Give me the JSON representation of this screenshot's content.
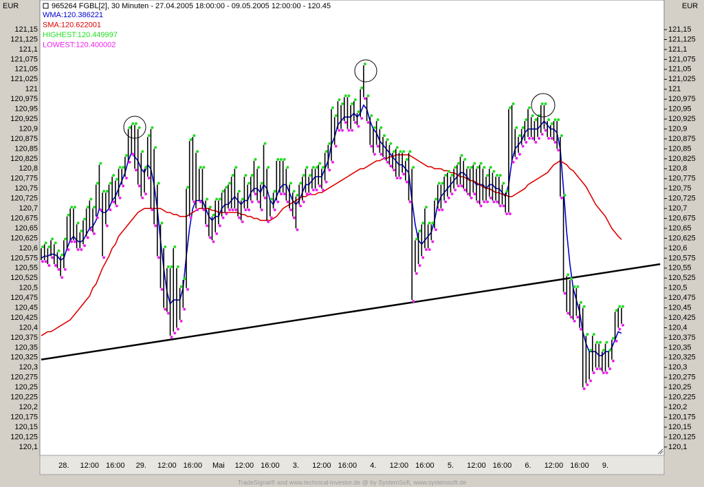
{
  "header": {
    "currency": "EUR",
    "title": "965264  FGBL[2], 30 Minuten - 27.04.2005 18:00:00 - 09.05.2005 12:00:00 - 120.45"
  },
  "footer": "TradeSignal® and www.technical-investor.de @ by SystemSoft, www.systemsoft.de",
  "chart_data": {
    "type": "ohlc",
    "categories": [
      null,
      null,
      null,
      null,
      "28.",
      null,
      null,
      null,
      null,
      null,
      null,
      null,
      "12:00",
      null,
      null,
      null,
      null,
      null,
      null,
      null,
      "16:00",
      null,
      null,
      null,
      null,
      null,
      null,
      null,
      "29.",
      null,
      null,
      null,
      null,
      null,
      null,
      null,
      "12:00",
      null,
      null,
      null,
      null,
      null,
      null,
      null,
      "16:00",
      null,
      null,
      null,
      null,
      null,
      null,
      null,
      "Mai",
      null,
      null,
      null,
      null,
      null,
      null,
      null,
      "12:00",
      null,
      null,
      null,
      null,
      null,
      null,
      null,
      "16:00",
      null,
      null,
      null,
      null,
      null,
      null,
      null,
      "3.",
      null,
      null,
      null,
      null,
      null,
      null,
      null,
      "12:00",
      null,
      null,
      null,
      null,
      null,
      null,
      null,
      "16:00",
      null,
      null,
      null,
      null,
      null,
      null,
      null,
      "4.",
      null,
      null,
      null,
      null,
      null,
      null,
      null,
      "12:00",
      null,
      null,
      null,
      null,
      null,
      null,
      null,
      "16:00",
      null,
      null,
      null,
      null,
      null,
      null,
      null,
      "5.",
      null,
      null,
      null,
      null,
      null,
      null,
      null,
      "12:00",
      null,
      null,
      null,
      null,
      null,
      null,
      null,
      "16:00",
      null,
      null,
      null,
      null,
      null,
      null,
      null,
      "6.",
      null,
      null,
      null,
      null,
      null,
      null,
      null,
      "12:00",
      null,
      null,
      null,
      null,
      null,
      null,
      null,
      "16:00",
      null,
      null,
      null,
      null,
      null,
      null,
      null,
      "9.",
      null,
      null,
      null,
      null,
      null,
      null,
      null,
      null
    ],
    "high": [
      120.6,
      120.61,
      120.6,
      120.62,
      120.61,
      120.59,
      120.58,
      120.62,
      120.68,
      120.7,
      120.7,
      120.66,
      120.64,
      120.67,
      120.7,
      120.72,
      120.7,
      120.76,
      120.81,
      120.74,
      120.74,
      120.76,
      120.78,
      120.77,
      120.8,
      120.8,
      120.83,
      120.9,
      120.91,
      120.91,
      120.9,
      120.84,
      120.8,
      120.88,
      120.9,
      120.85,
      120.76,
      120.66,
      120.6,
      120.55,
      120.55,
      120.6,
      120.55,
      120.5,
      120.52,
      120.75,
      120.87,
      120.88,
      120.84,
      120.8,
      120.8,
      120.72,
      120.7,
      120.68,
      120.72,
      120.72,
      120.74,
      120.75,
      120.76,
      120.78,
      120.8,
      120.74,
      120.72,
      120.78,
      120.76,
      120.78,
      120.82,
      120.8,
      120.76,
      120.86,
      120.8,
      120.72,
      120.74,
      120.82,
      120.82,
      120.82,
      120.8,
      120.76,
      120.74,
      120.73,
      120.76,
      120.78,
      120.8,
      120.78,
      120.8,
      120.8,
      120.81,
      120.8,
      120.84,
      120.86,
      120.95,
      120.93,
      120.97,
      120.96,
      120.98,
      120.98,
      120.96,
      120.97,
      120.94,
      121.0,
      121.06,
      120.98,
      120.93,
      120.9,
      120.92,
      120.9,
      120.88,
      120.87,
      120.86,
      120.84,
      120.85,
      120.84,
      120.84,
      120.82,
      120.84,
      120.8,
      120.62,
      120.64,
      120.66,
      120.7,
      120.66,
      120.66,
      120.72,
      120.76,
      120.76,
      120.78,
      120.79,
      120.78,
      120.8,
      120.81,
      120.83,
      120.82,
      120.8,
      120.8,
      120.81,
      120.8,
      120.81,
      120.8,
      120.78,
      120.8,
      120.79,
      120.78,
      120.78,
      120.76,
      120.74,
      120.95,
      120.96,
      120.9,
      120.88,
      120.9,
      120.92,
      120.95,
      120.93,
      120.92,
      120.93,
      120.96,
      120.96,
      120.92,
      120.91,
      120.92,
      120.92,
      120.88,
      120.73,
      120.53,
      120.52,
      120.5,
      120.5,
      120.46,
      120.45,
      120.38,
      120.34,
      120.38,
      120.36,
      120.36,
      120.34,
      120.36,
      120.34,
      120.37,
      120.44,
      120.45,
      120.45
    ],
    "low": [
      120.57,
      120.57,
      120.56,
      120.58,
      120.56,
      120.55,
      120.53,
      120.55,
      120.6,
      120.62,
      120.62,
      120.6,
      120.6,
      120.61,
      120.63,
      120.65,
      120.64,
      120.68,
      120.7,
      120.58,
      120.66,
      120.7,
      120.72,
      120.71,
      120.73,
      120.76,
      120.78,
      120.82,
      120.84,
      120.8,
      120.76,
      120.73,
      120.74,
      120.78,
      120.7,
      120.66,
      120.58,
      120.5,
      120.45,
      120.44,
      120.38,
      120.39,
      120.4,
      120.42,
      120.45,
      120.5,
      120.68,
      120.72,
      120.7,
      120.72,
      120.7,
      120.66,
      120.63,
      120.62,
      120.64,
      120.66,
      120.68,
      120.69,
      120.7,
      120.7,
      120.7,
      120.68,
      120.67,
      120.7,
      120.7,
      120.72,
      120.74,
      120.72,
      120.7,
      120.73,
      120.67,
      120.68,
      120.7,
      120.72,
      120.74,
      120.74,
      120.72,
      120.7,
      120.68,
      120.65,
      120.71,
      120.72,
      120.74,
      120.74,
      120.75,
      120.75,
      120.76,
      120.75,
      120.77,
      120.8,
      120.82,
      120.86,
      120.9,
      120.9,
      120.92,
      120.9,
      120.9,
      120.92,
      120.91,
      120.93,
      120.98,
      120.92,
      120.86,
      120.84,
      120.86,
      120.84,
      120.83,
      120.82,
      120.81,
      120.8,
      120.78,
      120.78,
      120.79,
      120.77,
      120.72,
      120.47,
      120.54,
      120.56,
      120.58,
      120.6,
      120.6,
      120.62,
      120.65,
      120.7,
      120.7,
      120.72,
      120.73,
      120.74,
      120.75,
      120.76,
      120.76,
      120.75,
      120.74,
      120.73,
      120.74,
      120.72,
      120.71,
      120.72,
      120.72,
      120.73,
      120.72,
      120.72,
      120.71,
      120.71,
      120.69,
      120.69,
      120.82,
      120.83,
      120.84,
      120.86,
      120.87,
      120.88,
      120.88,
      120.87,
      120.88,
      120.89,
      120.9,
      120.88,
      120.88,
      120.87,
      120.85,
      120.73,
      120.49,
      120.44,
      120.43,
      120.42,
      120.43,
      120.4,
      120.25,
      120.26,
      120.27,
      120.29,
      120.3,
      120.3,
      120.29,
      120.29,
      120.3,
      120.32,
      120.37,
      120.4,
      120.41
    ],
    "series": [
      {
        "name": "WMA:120.386221",
        "color": "#0000cc",
        "values": [
          120.575,
          120.58,
          120.58,
          120.585,
          120.585,
          120.58,
          120.57,
          120.575,
          120.6,
          120.62,
          120.63,
          120.62,
          120.615,
          120.62,
          120.635,
          120.65,
          120.655,
          120.67,
          120.7,
          120.69,
          120.69,
          120.7,
          120.72,
          120.73,
          120.75,
          120.77,
          120.79,
          120.82,
          120.84,
          120.83,
          120.82,
          120.8,
          120.79,
          120.81,
          120.8,
          120.76,
          120.7,
          120.62,
          120.55,
          120.49,
          120.46,
          120.47,
          120.47,
          120.47,
          120.5,
          120.58,
          120.65,
          120.7,
          120.72,
          120.72,
          120.72,
          120.7,
          120.68,
          120.67,
          120.68,
          120.68,
          120.7,
          120.71,
          120.71,
          120.72,
          120.73,
          120.72,
          120.71,
          120.72,
          120.72,
          120.74,
          120.75,
          120.75,
          120.74,
          120.76,
          120.75,
          120.72,
          120.71,
          120.73,
          120.75,
          120.76,
          120.76,
          120.74,
          120.72,
          120.71,
          120.72,
          120.74,
          120.76,
          120.76,
          120.77,
          120.78,
          120.78,
          120.78,
          120.8,
          120.82,
          120.86,
          120.88,
          120.91,
          120.92,
          120.93,
          120.93,
          120.93,
          120.94,
          120.93,
          120.94,
          120.96,
          120.95,
          120.92,
          120.9,
          120.89,
          120.87,
          120.86,
          120.85,
          120.84,
          120.83,
          120.82,
          120.81,
          120.81,
          120.8,
          120.79,
          120.72,
          120.66,
          120.62,
          120.61,
          120.62,
          120.63,
          120.64,
          120.67,
          120.71,
          120.73,
          120.74,
          120.75,
          120.76,
          120.77,
          120.78,
          120.79,
          120.79,
          120.78,
          120.77,
          120.77,
          120.76,
          120.76,
          120.76,
          120.75,
          120.76,
          120.76,
          120.75,
          120.75,
          120.74,
          120.73,
          120.76,
          120.82,
          120.85,
          120.86,
          120.87,
          120.89,
          120.9,
          120.9,
          120.9,
          120.9,
          120.91,
          120.92,
          120.91,
          120.9,
          120.9,
          120.89,
          120.85,
          120.75,
          120.64,
          120.56,
          120.5,
          120.47,
          120.44,
          120.39,
          120.36,
          120.34,
          120.34,
          120.34,
          120.33,
          120.33,
          120.34,
          120.34,
          120.35,
          120.37,
          120.39,
          120.386
        ]
      },
      {
        "name": "SMA:120.622001",
        "color": "#dd0000",
        "values": [
          120.38,
          120.385,
          120.39,
          120.39,
          120.395,
          120.4,
          120.405,
          120.41,
          120.415,
          120.42,
          120.43,
          120.44,
          120.45,
          120.46,
          120.47,
          120.48,
          120.5,
          120.51,
          120.53,
          120.55,
          120.565,
          120.58,
          120.6,
          120.61,
          120.63,
          120.64,
          120.65,
          120.66,
          120.67,
          120.68,
          120.69,
          120.695,
          120.7,
          120.7,
          120.7,
          120.7,
          120.7,
          120.7,
          120.695,
          120.69,
          120.69,
          120.685,
          120.685,
          120.68,
          120.68,
          120.68,
          120.685,
          120.69,
          120.695,
          120.7,
          120.7,
          120.7,
          120.7,
          120.695,
          120.695,
          120.69,
          120.69,
          120.69,
          120.69,
          120.69,
          120.69,
          120.69,
          120.685,
          120.685,
          120.68,
          120.68,
          120.675,
          120.675,
          120.67,
          120.67,
          120.67,
          120.67,
          120.675,
          120.68,
          120.69,
          120.7,
          120.705,
          120.71,
          120.715,
          120.72,
          120.725,
          120.73,
          120.73,
          120.735,
          120.735,
          120.735,
          120.74,
          120.74,
          120.745,
          120.75,
          120.755,
          120.76,
          120.765,
          120.77,
          120.775,
          120.78,
          120.785,
          120.79,
          120.795,
          120.8,
          120.8,
          120.805,
          120.81,
          120.815,
          120.82,
          120.82,
          120.825,
          120.825,
          120.83,
          120.83,
          120.835,
          120.835,
          120.835,
          120.835,
          120.835,
          120.83,
          120.825,
          120.82,
          120.815,
          120.81,
          120.805,
          120.805,
          120.8,
          120.8,
          120.8,
          120.795,
          120.795,
          120.79,
          120.79,
          120.785,
          120.78,
          120.78,
          120.775,
          120.77,
          120.77,
          120.765,
          120.76,
          120.755,
          120.75,
          120.75,
          120.745,
          120.74,
          120.74,
          120.735,
          120.735,
          120.73,
          120.73,
          120.735,
          120.74,
          120.745,
          120.75,
          120.76,
          120.765,
          120.77,
          120.775,
          120.78,
          120.785,
          120.79,
          120.8,
          120.81,
          120.815,
          120.82,
          120.815,
          120.81,
          120.8,
          120.795,
          120.785,
          120.775,
          120.765,
          120.755,
          120.74,
          120.725,
          120.71,
          120.7,
          120.69,
          120.68,
          120.665,
          120.65,
          120.64,
          120.63,
          120.622
        ]
      }
    ],
    "markers": [
      {
        "name": "HIGHEST:120.449997",
        "color": "#22dd22"
      },
      {
        "name": "LOWEST:120.400002",
        "color": "#ee22ee"
      }
    ],
    "trendline": {
      "color": "#000000",
      "x": [
        0,
        192
      ],
      "values": [
        120.32,
        120.56
      ]
    },
    "ylim": [
      120.079,
      121.221
    ],
    "yticks": [
      {
        "value": 120.1,
        "label": "120,1"
      },
      {
        "value": 120.125,
        "label": "120,125"
      },
      {
        "value": 120.15,
        "label": "120,15"
      },
      {
        "value": 120.175,
        "label": "120,175"
      },
      {
        "value": 120.2,
        "label": "120,2"
      },
      {
        "value": 120.225,
        "label": "120,225"
      },
      {
        "value": 120.25,
        "label": "120,25"
      },
      {
        "value": 120.275,
        "label": "120,275"
      },
      {
        "value": 120.3,
        "label": "120,3"
      },
      {
        "value": 120.325,
        "label": "120,325"
      },
      {
        "value": 120.35,
        "label": "120,35"
      },
      {
        "value": 120.375,
        "label": "120,375"
      },
      {
        "value": 120.4,
        "label": "120,4"
      },
      {
        "value": 120.425,
        "label": "120,425"
      },
      {
        "value": 120.45,
        "label": "120,45"
      },
      {
        "value": 120.475,
        "label": "120,475"
      },
      {
        "value": 120.5,
        "label": "120,5"
      },
      {
        "value": 120.525,
        "label": "120,525"
      },
      {
        "value": 120.55,
        "label": "120,55"
      },
      {
        "value": 120.575,
        "label": "120,575"
      },
      {
        "value": 120.6,
        "label": "120,6"
      },
      {
        "value": 120.625,
        "label": "120,625"
      },
      {
        "value": 120.65,
        "label": "120,65"
      },
      {
        "value": 120.675,
        "label": "120,675"
      },
      {
        "value": 120.7,
        "label": "120,7"
      },
      {
        "value": 120.725,
        "label": "120,725"
      },
      {
        "value": 120.75,
        "label": "120,75"
      },
      {
        "value": 120.775,
        "label": "120,775"
      },
      {
        "value": 120.8,
        "label": "120,8"
      },
      {
        "value": 120.825,
        "label": "120,825"
      },
      {
        "value": 120.85,
        "label": "120,85"
      },
      {
        "value": 120.875,
        "label": "120,875"
      },
      {
        "value": 120.9,
        "label": "120,9"
      },
      {
        "value": 120.925,
        "label": "120,925"
      },
      {
        "value": 120.95,
        "label": "120,95"
      },
      {
        "value": 120.975,
        "label": "120,975"
      },
      121,
      {
        "value": 121.025,
        "label": "121,025"
      },
      {
        "value": 121.05,
        "label": "121,05"
      },
      {
        "value": 121.075,
        "label": "121,075"
      },
      {
        "value": 121.1,
        "label": "121,1"
      },
      {
        "value": 121.125,
        "label": "121,125"
      },
      {
        "value": 121.15,
        "label": "121,15"
      }
    ],
    "grid": false
  }
}
